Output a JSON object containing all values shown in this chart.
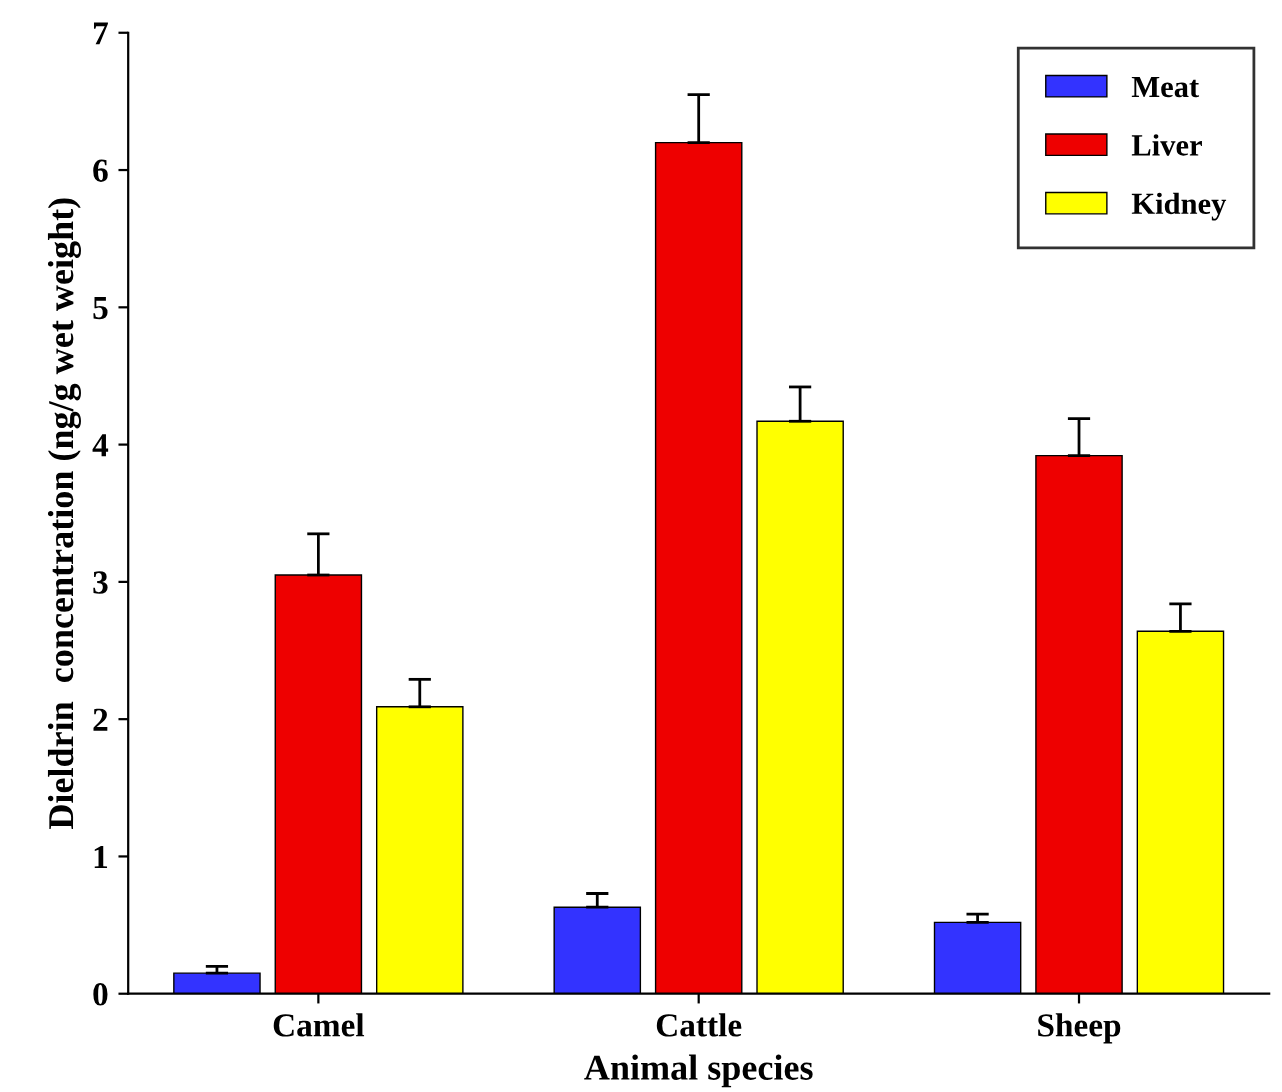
{
  "chart_data": {
    "type": "bar",
    "xlabel": "Animal species",
    "ylabel": "Dieldrin  concentration (ng/g wet weight)",
    "categories": [
      "Camel",
      "Cattle",
      "Sheep"
    ],
    "series": [
      {
        "name": "Meat",
        "color": "#3333ff",
        "values": [
          0.15,
          0.63,
          0.52
        ],
        "errors": [
          [
            0.15,
            0.2
          ],
          [
            0.63,
            0.73
          ],
          [
            0.52,
            0.58
          ]
        ]
      },
      {
        "name": "Liver",
        "color": "#ee0000",
        "values": [
          3.05,
          6.2,
          3.92
        ],
        "errors": [
          [
            3.05,
            3.35
          ],
          [
            6.2,
            6.55
          ],
          [
            3.92,
            4.19
          ]
        ]
      },
      {
        "name": "Kidney",
        "color": "#ffff00",
        "values": [
          2.09,
          4.17,
          2.64
        ],
        "errors": [
          [
            2.09,
            2.29
          ],
          [
            4.17,
            4.42
          ],
          [
            2.64,
            2.84
          ]
        ]
      }
    ],
    "ylim": [
      0,
      7
    ],
    "yticks": [
      0,
      1,
      2,
      3,
      4,
      5,
      6,
      7
    ],
    "grid": false,
    "legend": "top right"
  }
}
